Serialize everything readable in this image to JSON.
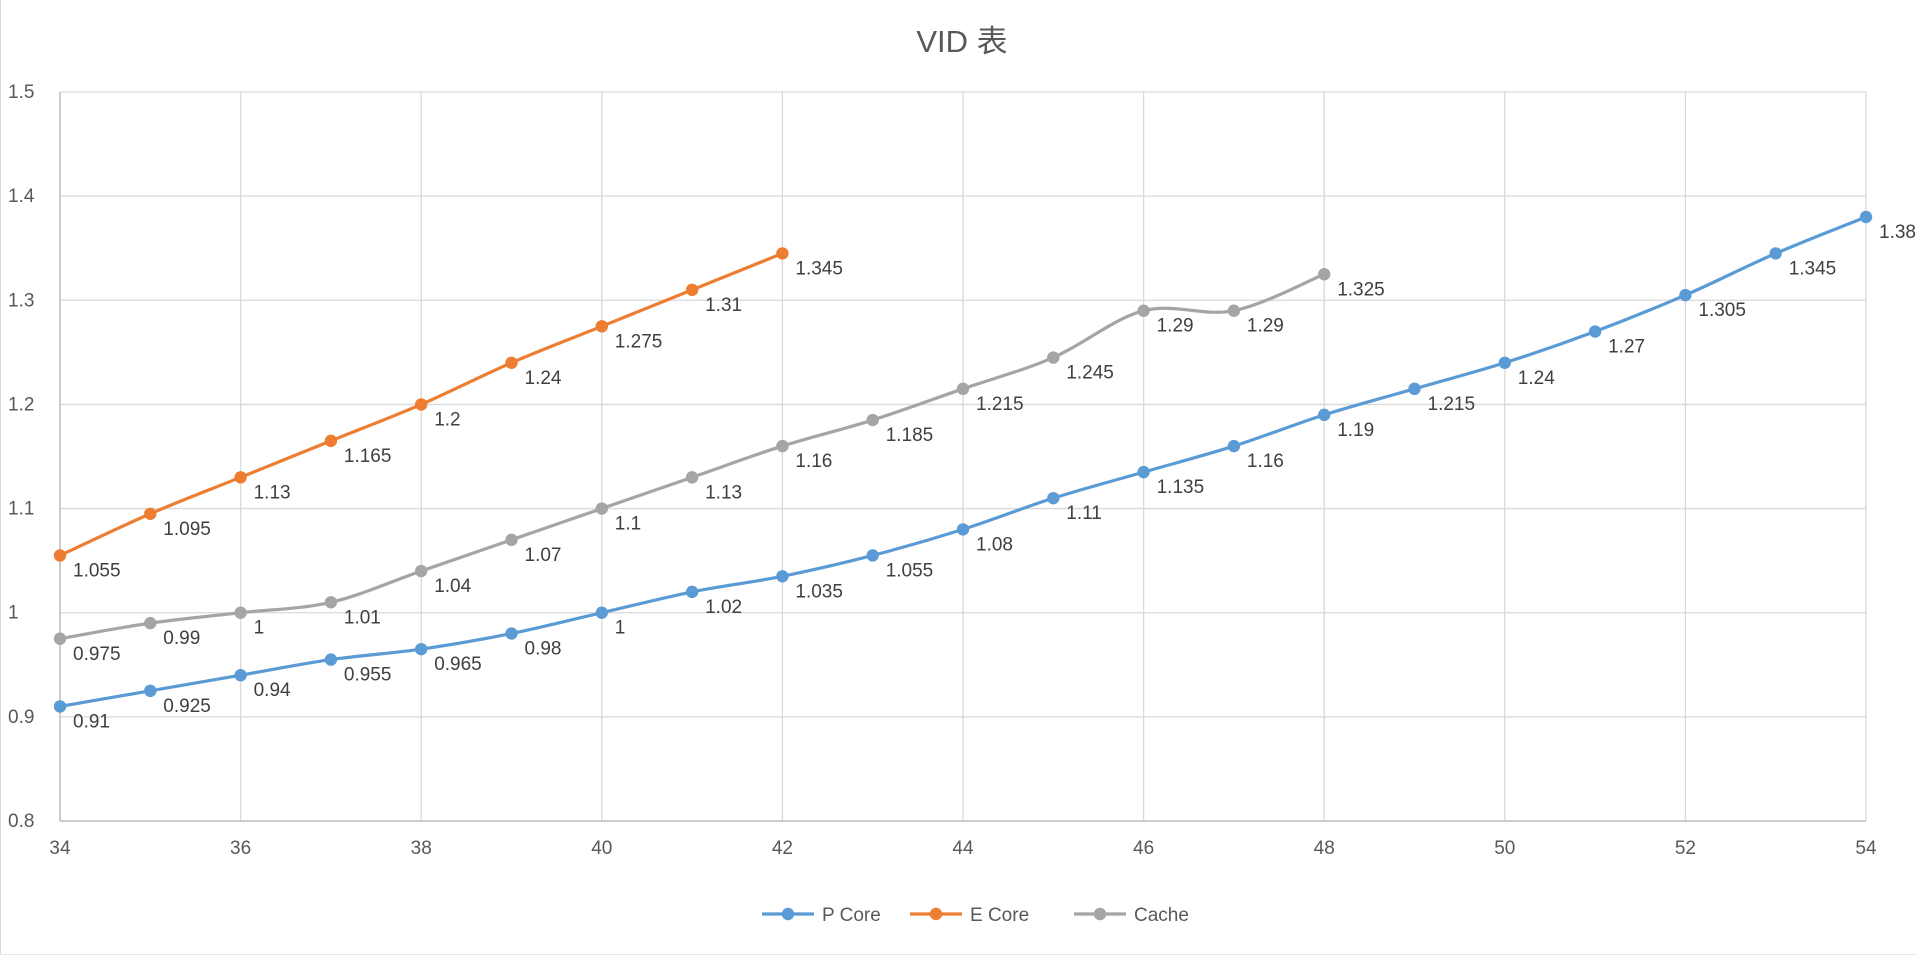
{
  "chart_data": {
    "type": "line",
    "title": "VID 表",
    "xlabel": "",
    "ylabel": "",
    "xlim": [
      34,
      54
    ],
    "ylim": [
      0.8,
      1.5
    ],
    "x_ticks": [
      34,
      36,
      38,
      40,
      42,
      44,
      46,
      48,
      50,
      52,
      54
    ],
    "y_ticks": [
      0.8,
      0.9,
      1,
      1.1,
      1.2,
      1.3,
      1.4,
      1.5
    ],
    "grid": true,
    "smooth": true,
    "legend_position": "bottom-center",
    "series": [
      {
        "name": "P Core",
        "color": "#5b9bd5",
        "x": [
          34,
          35,
          36,
          37,
          38,
          39,
          40,
          41,
          42,
          43,
          44,
          45,
          46,
          47,
          48,
          49,
          50,
          51,
          52,
          53,
          54
        ],
        "values": [
          0.91,
          0.925,
          0.94,
          0.955,
          0.965,
          0.98,
          1,
          1.02,
          1.035,
          1.055,
          1.08,
          1.11,
          1.135,
          1.16,
          1.19,
          1.215,
          1.24,
          1.27,
          1.305,
          1.345,
          1.38
        ],
        "labels": [
          "0.91",
          "0.925",
          "0.94",
          "0.955",
          "0.965",
          "0.98",
          "1",
          "1.02",
          "1.035",
          "1.055",
          "1.08",
          "1.11",
          "1.135",
          "1.16",
          "1.19",
          "1.215",
          "1.24",
          "1.27",
          "1.305",
          "1.345",
          "1.38"
        ]
      },
      {
        "name": "E Core",
        "color": "#ed7d31",
        "x": [
          34,
          35,
          36,
          37,
          38,
          39,
          40,
          41,
          42
        ],
        "values": [
          1.055,
          1.095,
          1.13,
          1.165,
          1.2,
          1.24,
          1.275,
          1.31,
          1.345
        ],
        "labels": [
          "1.055",
          "1.095",
          "1.13",
          "1.165",
          "1.2",
          "1.24",
          "1.275",
          "1.31",
          "1.345"
        ]
      },
      {
        "name": "Cache",
        "color": "#a5a5a5",
        "x": [
          34,
          35,
          36,
          37,
          38,
          39,
          40,
          41,
          42,
          43,
          44,
          45,
          46,
          47,
          48
        ],
        "values": [
          0.975,
          0.99,
          1,
          1.01,
          1.04,
          1.07,
          1.1,
          1.13,
          1.16,
          1.185,
          1.215,
          1.245,
          1.29,
          1.29,
          1.325
        ],
        "labels": [
          "0.975",
          "0.99",
          "1",
          "1.01",
          "1.04",
          "1.07",
          "1.1",
          "1.13",
          "1.16",
          "1.185",
          "1.215",
          "1.245",
          "1.29",
          "1.29",
          "1.325"
        ]
      }
    ]
  }
}
